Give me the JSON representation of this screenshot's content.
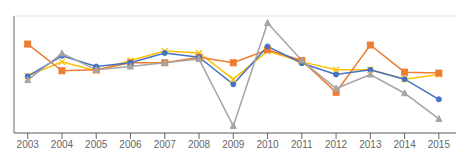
{
  "chart_data": {
    "type": "line",
    "x": [
      2003,
      2004,
      2005,
      2006,
      2007,
      2008,
      2009,
      2010,
      2011,
      2012,
      2013,
      2014,
      2015
    ],
    "series": [
      {
        "color": "#FFC000",
        "marker": "cross",
        "values": [
          1.2,
          4.2,
          2.3,
          4.5,
          6.5,
          6.1,
          0.5,
          6.5,
          4.2,
          2.5,
          2.5,
          0.5,
          1.5
        ]
      },
      {
        "color": "#ED7D31",
        "marker": "square",
        "values": [
          8.0,
          2.3,
          2.5,
          4.0,
          4.0,
          5.2,
          4.0,
          6.8,
          4.5,
          -2.3,
          7.8,
          2.0,
          1.8
        ]
      },
      {
        "color": "#4472C4",
        "marker": "circle",
        "values": [
          1.1,
          5.5,
          3.2,
          4.0,
          6.1,
          5.2,
          -0.6,
          7.5,
          3.9,
          1.5,
          2.5,
          0.5,
          -3.8
        ]
      },
      {
        "color": "#A5A5A5",
        "marker": "triangle",
        "values": [
          0.3,
          6.0,
          2.5,
          3.2,
          4.0,
          4.8,
          -9.5,
          12.5,
          4.5,
          -1.5,
          1.5,
          -2.5,
          -8.0
        ]
      }
    ],
    "xlim": [
      2002.6,
      2015.5
    ],
    "xticks": [
      2003,
      2004,
      2005,
      2006,
      2007,
      2008,
      2009,
      2010,
      2011,
      2012,
      2013,
      2014,
      2015
    ],
    "ylim": [
      -11,
      14
    ],
    "yticks": [
      -10,
      -5,
      0,
      5,
      10
    ],
    "grid": true,
    "tick_labels": "x"
  }
}
